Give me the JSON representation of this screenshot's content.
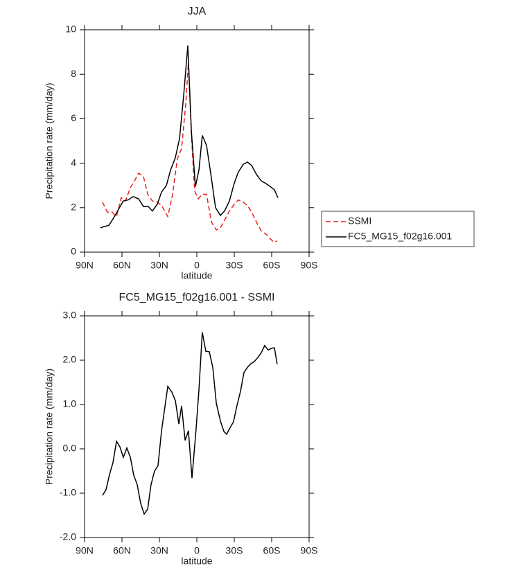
{
  "chart_data": [
    {
      "type": "line",
      "title": "JJA",
      "xlabel": "latitude",
      "ylabel": "Precipitation rate (mm/day)",
      "xlim": [
        90,
        -90
      ],
      "ylim": [
        0,
        10
      ],
      "xticks": [
        {
          "value": 90,
          "label": "90N"
        },
        {
          "value": 60,
          "label": "60N"
        },
        {
          "value": 30,
          "label": "30N"
        },
        0,
        {
          "value": -30,
          "label": "30S"
        },
        {
          "value": -60,
          "label": "60S"
        },
        {
          "value": -90,
          "label": "90S"
        }
      ],
      "yticks": [
        0,
        2,
        4,
        6,
        8,
        10
      ],
      "legend": "right",
      "series": [
        {
          "name": "SSMI",
          "color": "#e8201e",
          "linestyle": "dashed",
          "x": [
            75.6,
            71.7,
            67.8,
            64.4,
            60.6,
            57.2,
            53.3,
            50,
            46.7,
            42.8,
            39.4,
            35.6,
            31.7,
            28.3,
            23.3,
            19.4,
            15.6,
            12.2,
            8.9,
            6.7,
            4.4,
            1.7,
            -1.1,
            -4.4,
            -7.8,
            -11.7,
            -15.6,
            -18.9,
            -22.8,
            -26.1,
            -30,
            -33.3,
            -37.2,
            -40.6,
            -44.4,
            -48.3,
            -51.7,
            -55.6,
            -58.9,
            -61.7,
            -64.4
          ],
          "values": [
            2.25,
            1.8,
            1.8,
            1.6,
            2.45,
            2.3,
            2.9,
            3.2,
            3.55,
            3.4,
            2.6,
            2.3,
            2.25,
            2.1,
            1.6,
            2.6,
            4.2,
            4.65,
            6.65,
            8.55,
            5.3,
            2.75,
            2.4,
            2.6,
            2.6,
            1.35,
            1.0,
            1.1,
            1.5,
            1.85,
            2.15,
            2.35,
            2.25,
            2.1,
            1.75,
            1.3,
            0.95,
            0.8,
            0.6,
            0.45,
            0.5
          ]
        },
        {
          "name": "FC5_MG15_f02g16.001",
          "color": "#000000",
          "linestyle": "solid",
          "x": [
            77.2,
            74.4,
            70.6,
            66,
            62,
            59,
            55,
            51,
            46.7,
            42.8,
            38.9,
            35.6,
            31.7,
            28.3,
            24.4,
            21,
            17.2,
            13.9,
            10.6,
            7.2,
            4.4,
            1.1,
            -1.7,
            -4.4,
            -7.8,
            -11.1,
            -15,
            -18.9,
            -22.2,
            -26.1,
            -30,
            -33.3,
            -37.2,
            -40.6,
            -43.9,
            -47.8,
            -51.7,
            -55,
            -58.9,
            -62.2,
            -65
          ],
          "values": [
            1.09,
            1.15,
            1.2,
            1.6,
            2.0,
            2.3,
            2.35,
            2.5,
            2.4,
            2.05,
            2.05,
            1.85,
            2.15,
            2.7,
            3.0,
            3.7,
            4.25,
            5.1,
            7.0,
            9.3,
            5.45,
            2.95,
            3.7,
            5.25,
            4.8,
            3.55,
            2.0,
            1.65,
            1.85,
            2.3,
            3.1,
            3.6,
            3.95,
            4.05,
            3.9,
            3.5,
            3.2,
            3.1,
            2.95,
            2.8,
            2.45
          ]
        }
      ]
    },
    {
      "type": "line",
      "title": "FC5_MG15_f02g16.001 - SSMI",
      "xlabel": "latitude",
      "ylabel": "Precipitation rate (mm/day)",
      "xlim": [
        90,
        -90
      ],
      "ylim": [
        -2,
        3
      ],
      "xticks": [
        {
          "value": 90,
          "label": "90N"
        },
        {
          "value": 60,
          "label": "60N"
        },
        {
          "value": 30,
          "label": "30N"
        },
        0,
        {
          "value": -30,
          "label": "30S"
        },
        {
          "value": -60,
          "label": "60S"
        },
        {
          "value": -90,
          "label": "90S"
        }
      ],
      "yticks": [
        {
          "value": -2,
          "label": "-2.0"
        },
        {
          "value": -1,
          "label": "-1.0"
        },
        {
          "value": 0,
          "label": "0.0"
        },
        {
          "value": 1,
          "label": "1.0"
        },
        {
          "value": 2,
          "label": "2.0"
        },
        {
          "value": 3,
          "label": "3.0"
        }
      ],
      "color": "#000000",
      "x": [
        75.6,
        72.8,
        70,
        67.2,
        64.4,
        61.7,
        58.9,
        56.1,
        53.3,
        50.6,
        47.8,
        45,
        42.2,
        39.4,
        36.7,
        33.9,
        31.1,
        28.3,
        23.3,
        20,
        17.2,
        14.4,
        12.2,
        9.4,
        6.7,
        3.9,
        0.6,
        -1.7,
        -4.4,
        -7.2,
        -10,
        -12.8,
        -15.6,
        -18.9,
        -21.7,
        -23.9,
        -26.7,
        -29.4,
        -32.2,
        -35,
        -37.8,
        -40.6,
        -43.3,
        -46.1,
        -48.9,
        -51.7,
        -54.4,
        -57.2,
        -60,
        -62.2,
        -64.4
      ],
      "values": [
        -1.05,
        -0.92,
        -0.58,
        -0.31,
        0.17,
        0.05,
        -0.19,
        0.02,
        -0.19,
        -0.59,
        -0.81,
        -1.23,
        -1.47,
        -1.36,
        -0.81,
        -0.5,
        -0.38,
        0.41,
        1.41,
        1.28,
        1.09,
        0.56,
        0.97,
        0.19,
        0.41,
        -0.66,
        0.44,
        1.34,
        2.63,
        2.2,
        2.19,
        1.84,
        1.03,
        0.63,
        0.39,
        0.33,
        0.48,
        0.61,
        0.98,
        1.3,
        1.72,
        1.84,
        1.92,
        1.97,
        2.06,
        2.17,
        2.33,
        2.23,
        2.27,
        2.28,
        1.91
      ]
    }
  ]
}
